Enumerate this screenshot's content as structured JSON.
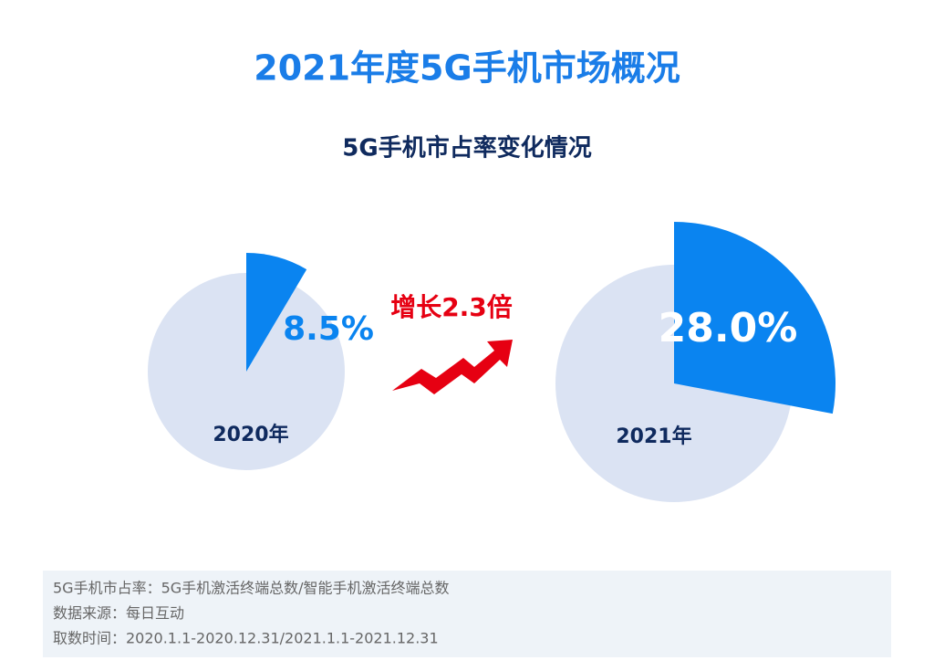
{
  "title": "2021年度5G手机市场概况",
  "subtitle": "5G手机市占率变化情况",
  "annotation": "增长2.3倍",
  "notes": [
    "5G手机市占率：5G手机激活终端总数/智能手机激活终端总数",
    "数据来源：每日互动",
    "取数时间：2020.1.1-2020.12.31/2021.1.1-2021.12.31"
  ],
  "chart_data": [
    {
      "type": "pie",
      "categories": [
        "2020年"
      ],
      "values": [
        8.5
      ],
      "value_labels": [
        "8.5%"
      ],
      "color": "#0a84f0",
      "base_color": "#dbe3f3"
    },
    {
      "type": "pie",
      "categories": [
        "2021年"
      ],
      "values": [
        28.0
      ],
      "value_labels": [
        "28.0%"
      ],
      "color": "#0a84f0",
      "base_color": "#dbe3f3"
    }
  ]
}
